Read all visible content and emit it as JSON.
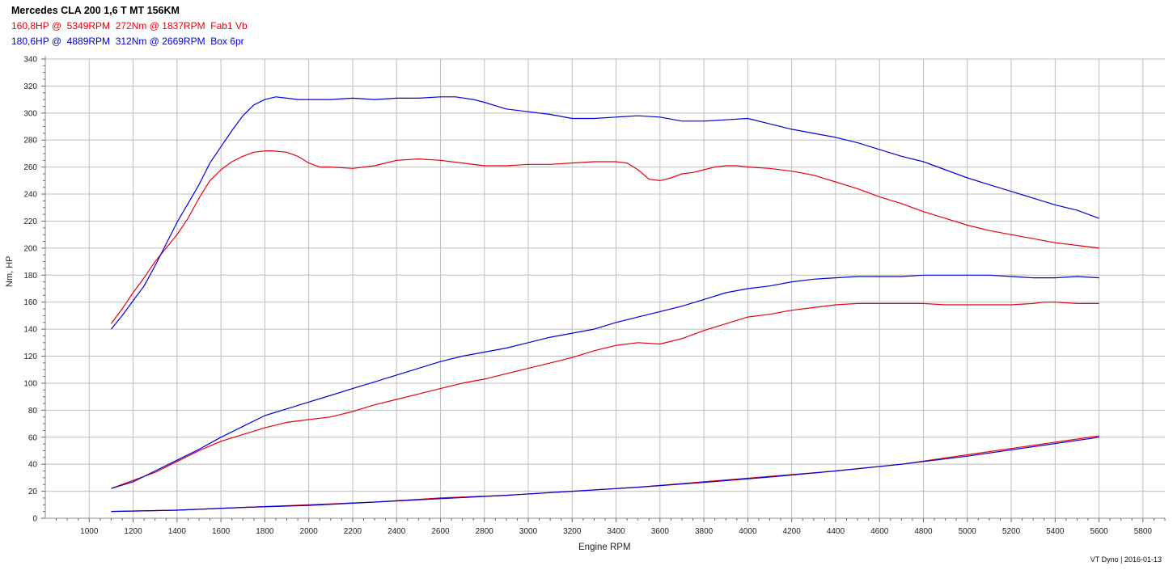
{
  "header": {
    "title": "Mercedes CLA 200 1,6 T MT 156KM",
    "run1": "160,8HP @  5349RPM  272Nm @ 1837RPM  Fab1 Vb",
    "run2": "180,6HP @  4889RPM  312Nm @ 2669RPM  Box 6pr"
  },
  "footer": "VT Dyno | 2016-01-13",
  "chart_data": {
    "type": "line",
    "title": "Mercedes CLA 200 1,6 T MT 156KM",
    "xlabel": "Engine RPM",
    "ylabel": "Nm, HP",
    "xlim": [
      800,
      5900
    ],
    "ylim": [
      0,
      340
    ],
    "xticks": [
      1000,
      1200,
      1400,
      1600,
      1800,
      2000,
      2200,
      2400,
      2600,
      2800,
      3000,
      3200,
      3400,
      3600,
      3800,
      4000,
      4200,
      4400,
      4600,
      4800,
      5000,
      5200,
      5400,
      5600,
      5800
    ],
    "yticks": [
      0,
      20,
      40,
      60,
      80,
      100,
      120,
      140,
      160,
      180,
      200,
      220,
      240,
      260,
      280,
      300,
      320,
      340
    ],
    "grid": true,
    "colors": {
      "red": "#e8000b",
      "blue": "#0000dd"
    },
    "series": [
      {
        "name": "Fab1 Vb",
        "quantity": "torque",
        "color": "#e8000b",
        "x": [
          1100,
          1150,
          1200,
          1250,
          1300,
          1350,
          1400,
          1450,
          1500,
          1550,
          1600,
          1650,
          1700,
          1750,
          1800,
          1837,
          1900,
          1950,
          2000,
          2050,
          2100,
          2200,
          2300,
          2400,
          2500,
          2600,
          2700,
          2800,
          2900,
          3000,
          3100,
          3200,
          3300,
          3400,
          3450,
          3500,
          3550,
          3600,
          3650,
          3700,
          3750,
          3800,
          3850,
          3900,
          3950,
          4000,
          4100,
          4200,
          4300,
          4400,
          4500,
          4600,
          4700,
          4800,
          4900,
          5000,
          5100,
          5200,
          5300,
          5400,
          5500,
          5600
        ],
        "y": [
          144,
          155,
          167,
          178,
          190,
          200,
          210,
          222,
          237,
          250,
          258,
          264,
          268,
          271,
          272,
          272,
          271,
          268,
          263,
          260,
          260,
          259,
          261,
          265,
          266,
          265,
          263,
          261,
          261,
          262,
          262,
          263,
          264,
          264,
          263,
          258,
          251,
          250,
          252,
          255,
          256,
          258,
          260,
          261,
          261,
          260,
          259,
          257,
          254,
          249,
          244,
          238,
          233,
          227,
          222,
          217,
          213,
          210,
          207,
          204,
          202,
          200
        ]
      },
      {
        "name": "Box 6pr",
        "quantity": "torque",
        "color": "#0000dd",
        "x": [
          1100,
          1150,
          1200,
          1250,
          1300,
          1350,
          1400,
          1450,
          1500,
          1550,
          1600,
          1650,
          1700,
          1750,
          1800,
          1850,
          1900,
          1950,
          2000,
          2100,
          2200,
          2300,
          2400,
          2500,
          2600,
          2669,
          2750,
          2800,
          2900,
          3000,
          3100,
          3200,
          3300,
          3400,
          3500,
          3600,
          3700,
          3800,
          3900,
          4000,
          4100,
          4200,
          4300,
          4400,
          4500,
          4600,
          4700,
          4800,
          4900,
          5000,
          5100,
          5200,
          5300,
          5400,
          5500,
          5600
        ],
        "y": [
          140,
          150,
          161,
          172,
          187,
          203,
          219,
          233,
          247,
          263,
          275,
          287,
          298,
          306,
          310,
          312,
          311,
          310,
          310,
          310,
          311,
          310,
          311,
          311,
          312,
          312,
          310,
          308,
          303,
          301,
          299,
          296,
          296,
          297,
          298,
          297,
          294,
          294,
          295,
          296,
          292,
          288,
          285,
          282,
          278,
          273,
          268,
          264,
          258,
          252,
          247,
          242,
          237,
          232,
          228,
          222
        ]
      },
      {
        "name": "Fab1 Vb",
        "quantity": "power",
        "color": "#e8000b",
        "x": [
          1100,
          1200,
          1300,
          1400,
          1500,
          1600,
          1700,
          1800,
          1900,
          2000,
          2100,
          2200,
          2300,
          2400,
          2500,
          2600,
          2700,
          2800,
          2900,
          3000,
          3100,
          3200,
          3300,
          3400,
          3500,
          3600,
          3700,
          3800,
          3900,
          4000,
          4100,
          4200,
          4300,
          4400,
          4500,
          4600,
          4700,
          4800,
          4900,
          5000,
          5100,
          5200,
          5300,
          5349,
          5400,
          5500,
          5600
        ],
        "y": [
          22,
          28,
          34,
          42,
          50,
          57,
          62,
          67,
          71,
          73,
          75,
          79,
          84,
          88,
          92,
          96,
          100,
          103,
          107,
          111,
          115,
          119,
          124,
          128,
          130,
          129,
          133,
          139,
          144,
          149,
          151,
          154,
          156,
          158,
          159,
          159,
          159,
          159,
          158,
          158,
          158,
          158,
          159,
          160,
          160,
          159,
          159
        ]
      },
      {
        "name": "Box 6pr",
        "quantity": "power",
        "color": "#0000dd",
        "x": [
          1100,
          1200,
          1300,
          1400,
          1500,
          1600,
          1700,
          1800,
          1900,
          2000,
          2100,
          2200,
          2300,
          2400,
          2500,
          2600,
          2700,
          2800,
          2900,
          3000,
          3100,
          3200,
          3300,
          3400,
          3500,
          3600,
          3700,
          3800,
          3900,
          4000,
          4100,
          4200,
          4300,
          4400,
          4500,
          4600,
          4700,
          4800,
          4889,
          5000,
          5100,
          5200,
          5300,
          5400,
          5500,
          5600
        ],
        "y": [
          22,
          27,
          35,
          43,
          51,
          60,
          68,
          76,
          81,
          86,
          91,
          96,
          101,
          106,
          111,
          116,
          120,
          123,
          126,
          130,
          134,
          137,
          140,
          145,
          149,
          153,
          157,
          162,
          167,
          170,
          172,
          175,
          177,
          178,
          179,
          179,
          179,
          180,
          180,
          180,
          180,
          179,
          178,
          178,
          179,
          178
        ]
      },
      {
        "name": "Fab1 Vb",
        "quantity": "loss",
        "color": "#e8000b",
        "x": [
          1100,
          1400,
          1700,
          2000,
          2300,
          2600,
          2900,
          3200,
          3500,
          3800,
          4100,
          4400,
          4700,
          5000,
          5300,
          5600
        ],
        "y": [
          5,
          6,
          8,
          10,
          12,
          15,
          17,
          20,
          23,
          27,
          31,
          35,
          40,
          47,
          54,
          61
        ]
      },
      {
        "name": "Box 6pr",
        "quantity": "loss",
        "color": "#0000dd",
        "x": [
          1100,
          1400,
          1700,
          2000,
          2300,
          2600,
          2900,
          3200,
          3500,
          3800,
          4100,
          4400,
          4700,
          5000,
          5300,
          5600
        ],
        "y": [
          5,
          6,
          8,
          9.5,
          12,
          14.5,
          17,
          20,
          23,
          26.5,
          30.5,
          35,
          40,
          46,
          53,
          60
        ]
      }
    ]
  }
}
